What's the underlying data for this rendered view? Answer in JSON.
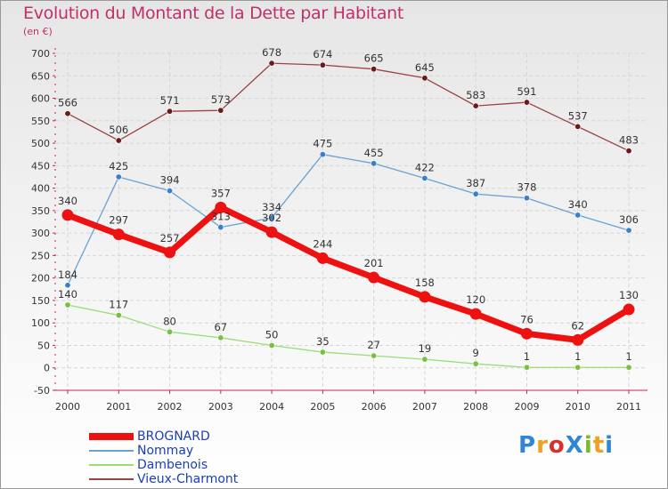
{
  "header": {
    "title": "Evolution du Montant de la Dette par Habitant",
    "subtitle": "(en €)"
  },
  "logo": {
    "text": "ProXiti",
    "colors": [
      "#2e86d4",
      "#f0a020",
      "#d83030",
      "#2e86d4",
      "#7ab830",
      "#f0a020",
      "#2e86d4"
    ]
  },
  "chart_data": {
    "type": "line",
    "x": [
      "2000",
      "2001",
      "2002",
      "2003",
      "2004",
      "2005",
      "2006",
      "2007",
      "2008",
      "2009",
      "2010",
      "2011"
    ],
    "ylim": [
      -50,
      700
    ],
    "yticks": [
      -50,
      0,
      50,
      100,
      150,
      200,
      250,
      300,
      350,
      400,
      450,
      500,
      550,
      600,
      650,
      700
    ],
    "grid": true,
    "legend_position": "bottom-left",
    "series": [
      {
        "name": "BROGNARD",
        "color": "#ee1111",
        "width": 7,
        "radius": 6.5,
        "values": [
          340,
          297,
          257,
          357,
          302,
          244,
          201,
          158,
          120,
          76,
          62,
          130
        ]
      },
      {
        "name": "Nommay",
        "color": "#6aa2d4",
        "marker": "#3a7fc8",
        "width": 1.3,
        "radius": 3.2,
        "values": [
          184,
          425,
          394,
          313,
          334,
          475,
          455,
          422,
          387,
          378,
          340,
          306
        ]
      },
      {
        "name": "Dambenois",
        "color": "#99dd77",
        "marker": "#77c040",
        "width": 1.3,
        "radius": 3.2,
        "values": [
          140,
          117,
          80,
          67,
          50,
          35,
          27,
          19,
          9,
          1,
          1,
          1
        ]
      },
      {
        "name": "Vieux-Charmont",
        "color": "#9a4444",
        "marker": "#6a1a1a",
        "width": 1.3,
        "radius": 3.2,
        "values": [
          566,
          506,
          571,
          573,
          678,
          674,
          665,
          645,
          583,
          591,
          537,
          483
        ]
      }
    ]
  }
}
